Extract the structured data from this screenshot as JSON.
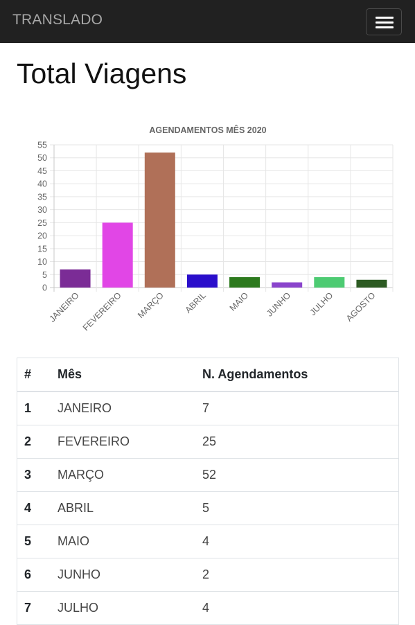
{
  "navbar": {
    "brand": "TRANSLADO",
    "menu_icon": "hamburger-menu-icon"
  },
  "page": {
    "title": "Total Viagens"
  },
  "chart_data": {
    "type": "bar",
    "title": "AGENDAMENTOS MÊS 2020",
    "categories": [
      "JANEIRO",
      "FEVEREIRO",
      "MARÇO",
      "ABRIL",
      "MAIO",
      "JUNHO",
      "JULHO",
      "AGOSTO"
    ],
    "values": [
      7,
      25,
      52,
      5,
      4,
      2,
      4,
      3
    ],
    "colors": [
      "#7b2c96",
      "#e146e6",
      "#b07058",
      "#2a0ecb",
      "#2d7a1e",
      "#8a44cc",
      "#4dcb72",
      "#2c5a22"
    ],
    "xlabel": "",
    "ylabel": "",
    "ylim": [
      0,
      55
    ],
    "yticks": [
      0,
      5,
      10,
      15,
      20,
      25,
      30,
      35,
      40,
      45,
      50,
      55
    ],
    "grid": true,
    "legend": "none"
  },
  "table": {
    "headers": [
      "#",
      "Mês",
      "N. Agendamentos"
    ],
    "rows": [
      [
        "1",
        "JANEIRO",
        "7"
      ],
      [
        "2",
        "FEVEREIRO",
        "25"
      ],
      [
        "3",
        "MARÇO",
        "52"
      ],
      [
        "4",
        "ABRIL",
        "5"
      ],
      [
        "5",
        "MAIO",
        "4"
      ],
      [
        "6",
        "JUNHO",
        "2"
      ],
      [
        "7",
        "JULHO",
        "4"
      ]
    ]
  }
}
